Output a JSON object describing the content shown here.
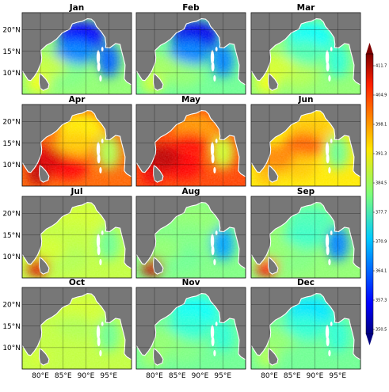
{
  "figure": {
    "months": [
      "Jan",
      "Feb",
      "Mar",
      "Apr",
      "May",
      "Jun",
      "Jul",
      "Aug",
      "Sep",
      "Oct",
      "Nov",
      "Dec"
    ],
    "lat_ticks": [
      "20°N",
      "15°N",
      "10°N"
    ],
    "lon_ticks": [
      "80°E",
      "85°E",
      "90°E",
      "95°E"
    ],
    "colorbar_ticks": [
      "411.7",
      "404.9",
      "398.1",
      "391.3",
      "384.5",
      "377.7",
      "370.9",
      "364.1",
      "357.3",
      "350.5"
    ],
    "colorbar_range": [
      350.5,
      411.7
    ],
    "colormap": "jet",
    "land_color": "#777777",
    "grid": true
  },
  "chart_data": {
    "type": "heatmap",
    "panels": [
      "Jan",
      "Feb",
      "Mar",
      "Apr",
      "May",
      "Jun",
      "Jul",
      "Aug",
      "Sep",
      "Oct",
      "Nov",
      "Dec"
    ],
    "layout": "4 rows x 3 columns",
    "lat_range": [
      5,
      24
    ],
    "lon_range": [
      76,
      100
    ],
    "value_range": [
      350.5,
      411.7
    ],
    "colorbar_ticks": [
      411.7,
      404.9,
      398.1,
      391.3,
      384.5,
      377.7,
      370.9,
      364.1,
      357.3,
      350.5
    ],
    "approx_basin_mean_by_month": {
      "Jan": 376,
      "Feb": 374,
      "Mar": 382,
      "Apr": 398,
      "May": 401,
      "Jun": 393,
      "Jul": 384,
      "Aug": 380,
      "Sep": 379,
      "Oct": 385,
      "Nov": 378,
      "Dec": 378
    }
  }
}
